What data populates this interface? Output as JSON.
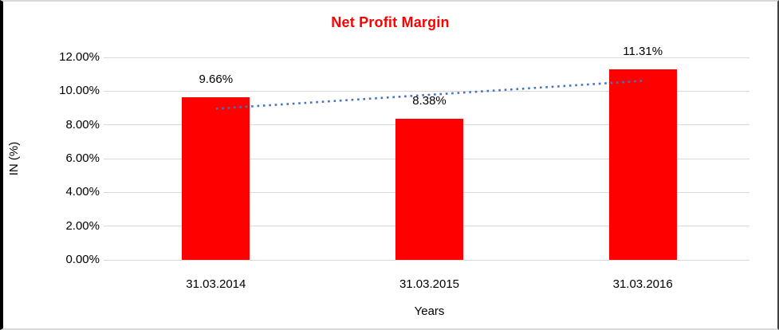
{
  "chart_data": {
    "type": "bar",
    "title": "Net Profit Margin",
    "categories": [
      "31.03.2014",
      "31.03.2015",
      "31.03.2016"
    ],
    "values": [
      9.66,
      8.38,
      11.31
    ],
    "data_labels": [
      "9.66%",
      "8.38%",
      "11.31%"
    ],
    "xlabel": "Years",
    "ylabel": "IN (%)",
    "ylim": [
      0,
      12
    ],
    "ytick_interval": 2,
    "ytick_labels": [
      "0.00%",
      "2.00%",
      "4.00%",
      "6.00%",
      "8.00%",
      "10.00%",
      "12.00%"
    ],
    "grid": true,
    "legend": "none",
    "colors": {
      "bar": "#ff0000",
      "title": "#ff0000",
      "gridline": "#d9d9d9",
      "trendline": "#4472c4",
      "text": "#000000"
    },
    "trendline": {
      "type": "linear",
      "style": "dotted",
      "fit_endpoints_pct": [
        8.96,
        10.61
      ]
    }
  }
}
